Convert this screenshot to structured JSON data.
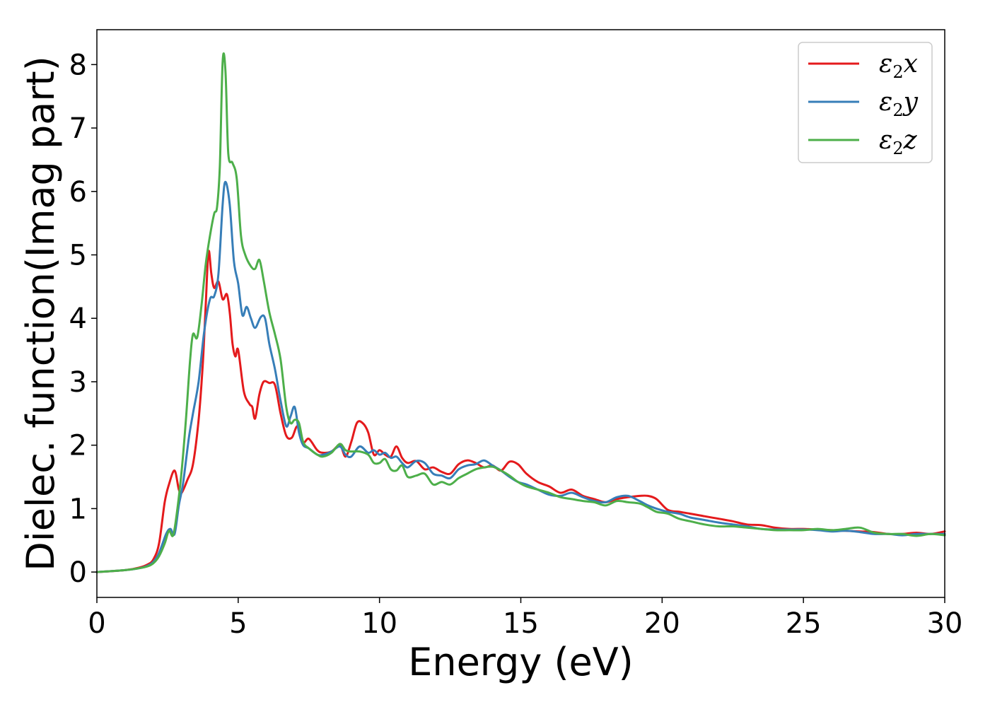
{
  "chart_data": {
    "type": "line",
    "xlabel": "Energy (eV)",
    "ylabel": "Dielec. function(Imag part)",
    "xlim": [
      0,
      30
    ],
    "ylim": [
      -0.4,
      8.55
    ],
    "xticks": [
      0,
      5,
      10,
      15,
      20,
      25,
      30
    ],
    "yticks": [
      0,
      1,
      2,
      3,
      4,
      5,
      6,
      7,
      8
    ],
    "grid": false,
    "legend_position": "top-right",
    "series": [
      {
        "name": "ε2x",
        "legend_base": "ε",
        "legend_sub": "2",
        "legend_var": "x",
        "color": "#e41a1c",
        "x": [
          0,
          1,
          1.5,
          1.8,
          2.0,
          2.2,
          2.4,
          2.55,
          2.75,
          2.9,
          3.0,
          3.2,
          3.4,
          3.6,
          3.75,
          3.85,
          3.95,
          4.05,
          4.15,
          4.3,
          4.45,
          4.6,
          4.7,
          4.8,
          4.9,
          5.0,
          5.2,
          5.4,
          5.5,
          5.6,
          5.75,
          5.9,
          6.1,
          6.3,
          6.5,
          6.7,
          6.9,
          7.1,
          7.3,
          7.5,
          7.8,
          8.0,
          8.3,
          8.6,
          8.8,
          9.0,
          9.2,
          9.4,
          9.6,
          9.8,
          10.0,
          10.2,
          10.4,
          10.6,
          10.8,
          11.0,
          11.3,
          11.6,
          11.9,
          12.2,
          12.5,
          12.8,
          13.1,
          13.4,
          13.7,
          14.0,
          14.3,
          14.6,
          14.9,
          15.2,
          15.6,
          16.0,
          16.4,
          16.8,
          17.2,
          17.6,
          18.0,
          18.4,
          18.8,
          19.2,
          19.5,
          19.8,
          20.2,
          20.6,
          21.0,
          21.5,
          22.0,
          22.5,
          23.0,
          23.5,
          24.0,
          24.5,
          25.0,
          25.5,
          26.0,
          26.5,
          27.0,
          27.5,
          28.0,
          28.5,
          29.0,
          29.5,
          30.0
        ],
        "values": [
          0,
          0.03,
          0.07,
          0.12,
          0.2,
          0.45,
          1.1,
          1.38,
          1.6,
          1.3,
          1.25,
          1.45,
          1.7,
          2.4,
          3.3,
          4.2,
          5.05,
          4.7,
          4.48,
          4.58,
          4.3,
          4.38,
          4.1,
          3.6,
          3.4,
          3.5,
          2.85,
          2.65,
          2.6,
          2.42,
          2.8,
          3.0,
          2.98,
          2.95,
          2.5,
          2.15,
          2.12,
          2.3,
          2.05,
          2.1,
          1.92,
          1.88,
          1.9,
          2.0,
          1.82,
          2.05,
          2.35,
          2.35,
          2.2,
          1.85,
          1.92,
          1.85,
          1.82,
          1.98,
          1.8,
          1.72,
          1.75,
          1.62,
          1.65,
          1.58,
          1.55,
          1.7,
          1.76,
          1.72,
          1.65,
          1.68,
          1.6,
          1.74,
          1.7,
          1.55,
          1.42,
          1.35,
          1.25,
          1.3,
          1.2,
          1.15,
          1.1,
          1.15,
          1.18,
          1.2,
          1.2,
          1.15,
          0.98,
          0.95,
          0.92,
          0.88,
          0.84,
          0.8,
          0.75,
          0.74,
          0.7,
          0.68,
          0.68,
          0.67,
          0.66,
          0.65,
          0.64,
          0.63,
          0.6,
          0.6,
          0.62,
          0.6,
          0.64
        ]
      },
      {
        "name": "ε2y",
        "legend_base": "ε",
        "legend_sub": "2",
        "legend_var": "y",
        "color": "#377eb8",
        "x": [
          0,
          1,
          1.5,
          1.8,
          2.0,
          2.2,
          2.45,
          2.6,
          2.75,
          2.9,
          3.05,
          3.25,
          3.4,
          3.6,
          3.8,
          4.0,
          4.15,
          4.3,
          4.45,
          4.55,
          4.7,
          4.85,
          5.0,
          5.15,
          5.3,
          5.45,
          5.6,
          5.8,
          5.95,
          6.1,
          6.3,
          6.5,
          6.7,
          6.85,
          7.0,
          7.15,
          7.3,
          7.5,
          7.8,
          8.0,
          8.3,
          8.6,
          8.8,
          9.0,
          9.3,
          9.6,
          9.8,
          10.0,
          10.2,
          10.4,
          10.6,
          10.8,
          11.0,
          11.3,
          11.6,
          11.9,
          12.2,
          12.5,
          12.8,
          13.1,
          13.4,
          13.7,
          14.0,
          14.3,
          14.6,
          14.9,
          15.2,
          15.6,
          16.0,
          16.4,
          16.8,
          17.2,
          17.6,
          18.0,
          18.4,
          18.8,
          19.2,
          19.5,
          19.8,
          20.2,
          20.6,
          21.0,
          21.5,
          22.0,
          22.5,
          23.0,
          23.5,
          24.0,
          24.5,
          25.0,
          25.5,
          26.0,
          26.5,
          27.0,
          27.5,
          28.0,
          28.5,
          29.0,
          29.5,
          30.0
        ],
        "values": [
          0,
          0.03,
          0.06,
          0.1,
          0.16,
          0.3,
          0.6,
          0.68,
          0.6,
          1.05,
          1.4,
          2.1,
          2.5,
          3.0,
          3.8,
          4.3,
          4.35,
          4.7,
          5.8,
          6.15,
          5.8,
          4.9,
          4.55,
          4.05,
          4.18,
          4.0,
          3.85,
          4.02,
          4.0,
          3.6,
          3.2,
          2.7,
          2.3,
          2.45,
          2.6,
          2.2,
          2.0,
          1.95,
          1.85,
          1.85,
          1.9,
          1.98,
          1.85,
          1.82,
          1.98,
          1.88,
          1.92,
          1.85,
          1.88,
          1.8,
          1.82,
          1.72,
          1.65,
          1.75,
          1.72,
          1.55,
          1.52,
          1.48,
          1.62,
          1.68,
          1.7,
          1.76,
          1.68,
          1.6,
          1.5,
          1.42,
          1.38,
          1.3,
          1.22,
          1.2,
          1.25,
          1.18,
          1.12,
          1.1,
          1.18,
          1.2,
          1.12,
          1.05,
          1.0,
          0.95,
          0.92,
          0.86,
          0.82,
          0.78,
          0.75,
          0.72,
          0.68,
          0.67,
          0.67,
          0.67,
          0.66,
          0.64,
          0.65,
          0.63,
          0.6,
          0.6,
          0.58,
          0.6,
          0.6,
          0.6
        ]
      },
      {
        "name": "ε2z",
        "legend_base": "ε",
        "legend_sub": "2",
        "legend_var": "z",
        "color": "#4daf4a",
        "x": [
          0,
          1,
          1.5,
          1.8,
          2.0,
          2.2,
          2.4,
          2.55,
          2.7,
          2.85,
          3.0,
          3.15,
          3.3,
          3.4,
          3.55,
          3.7,
          3.85,
          4.0,
          4.15,
          4.25,
          4.35,
          4.45,
          4.55,
          4.65,
          4.8,
          4.95,
          5.1,
          5.25,
          5.45,
          5.6,
          5.75,
          5.9,
          6.1,
          6.3,
          6.5,
          6.7,
          6.85,
          7.0,
          7.15,
          7.3,
          7.5,
          7.8,
          8.0,
          8.3,
          8.6,
          8.8,
          9.0,
          9.3,
          9.6,
          9.8,
          10.0,
          10.2,
          10.4,
          10.6,
          10.8,
          11.0,
          11.3,
          11.6,
          11.9,
          12.2,
          12.5,
          12.8,
          13.1,
          13.4,
          13.7,
          14.0,
          14.3,
          14.6,
          14.9,
          15.2,
          15.6,
          16.0,
          16.4,
          16.8,
          17.2,
          17.6,
          18.0,
          18.4,
          18.8,
          19.2,
          19.5,
          19.8,
          20.2,
          20.6,
          21.0,
          21.5,
          22.0,
          22.5,
          23.0,
          23.5,
          24.0,
          24.5,
          25.0,
          25.5,
          26.0,
          26.5,
          27.0,
          27.5,
          28.0,
          28.5,
          29.0,
          29.5,
          30.0
        ],
        "values": [
          0,
          0.03,
          0.06,
          0.09,
          0.14,
          0.25,
          0.45,
          0.65,
          0.58,
          1.0,
          1.6,
          2.4,
          3.35,
          3.75,
          3.7,
          4.2,
          4.85,
          5.3,
          5.65,
          5.75,
          6.4,
          8.05,
          7.9,
          6.6,
          6.45,
          6.2,
          5.3,
          5.0,
          4.82,
          4.78,
          4.92,
          4.6,
          4.1,
          3.75,
          3.35,
          2.6,
          2.35,
          2.4,
          2.35,
          2.05,
          1.95,
          1.85,
          1.82,
          1.88,
          2.02,
          1.92,
          1.9,
          1.9,
          1.85,
          1.72,
          1.72,
          1.78,
          1.62,
          1.6,
          1.68,
          1.5,
          1.52,
          1.55,
          1.38,
          1.42,
          1.38,
          1.48,
          1.55,
          1.62,
          1.65,
          1.66,
          1.6,
          1.52,
          1.42,
          1.35,
          1.3,
          1.25,
          1.18,
          1.15,
          1.12,
          1.1,
          1.05,
          1.12,
          1.1,
          1.08,
          1.02,
          0.95,
          0.92,
          0.84,
          0.8,
          0.75,
          0.72,
          0.72,
          0.7,
          0.68,
          0.66,
          0.66,
          0.66,
          0.68,
          0.66,
          0.68,
          0.7,
          0.62,
          0.6,
          0.6,
          0.57,
          0.6,
          0.58
        ]
      }
    ]
  }
}
